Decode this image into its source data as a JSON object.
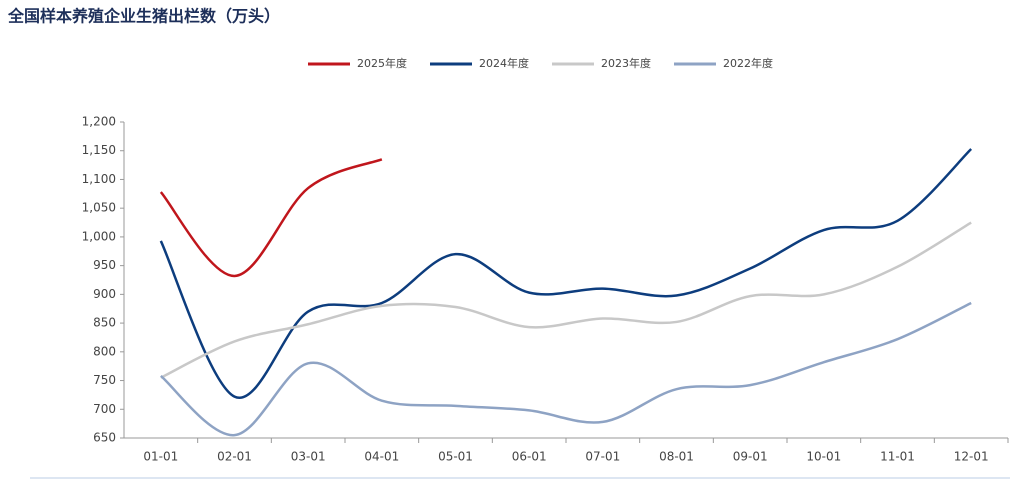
{
  "chart_data": {
    "type": "line",
    "title": "全国样本养殖企业生猪出栏数（万头）",
    "categories": [
      "01-01",
      "02-01",
      "03-01",
      "04-01",
      "05-01",
      "06-01",
      "07-01",
      "08-01",
      "09-01",
      "10-01",
      "11-01",
      "12-01"
    ],
    "series": [
      {
        "name": "2025年度",
        "color": "#c0161c",
        "values": [
          1078,
          932,
          1085,
          1135,
          null,
          null,
          null,
          null,
          null,
          null,
          null,
          null
        ]
      },
      {
        "name": "2024年度",
        "color": "#0d3d7e",
        "values": [
          993,
          722,
          870,
          885,
          970,
          903,
          910,
          898,
          945,
          1012,
          1028,
          1153
        ]
      },
      {
        "name": "2023年度",
        "color": "#c8c8c8",
        "values": [
          755,
          818,
          848,
          880,
          878,
          843,
          858,
          852,
          897,
          900,
          948,
          1025
        ]
      },
      {
        "name": "2022年度",
        "color": "#8ea3c4",
        "values": [
          758,
          655,
          780,
          715,
          706,
          698,
          678,
          735,
          742,
          782,
          822,
          885
        ]
      }
    ],
    "ylim": [
      650,
      1200
    ],
    "yticks": [
      650,
      700,
      750,
      800,
      850,
      900,
      950,
      {
        "value": 1000,
        "label": "1,000"
      },
      {
        "value": 1050,
        "label": "1,050"
      },
      {
        "value": 1100,
        "label": "1,100"
      },
      {
        "value": 1150,
        "label": "1,150"
      },
      {
        "value": 1200,
        "label": "1,200"
      }
    ],
    "legend": "top"
  }
}
